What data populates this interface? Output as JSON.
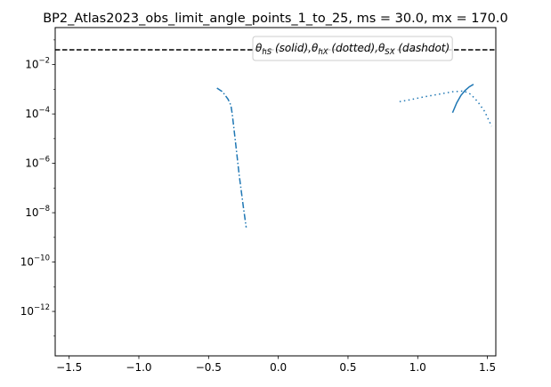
{
  "chart_data": {
    "type": "line",
    "title": "BP2_Atlas2023_obs_limit_angle_points_1_to_25, ms = 30.0, mx = 170.0",
    "xlabel": "",
    "ylabel": "",
    "xscale": "linear",
    "yscale": "log",
    "xlim": [
      -1.6,
      1.56
    ],
    "ylim_log10": [
      -13.8,
      -0.5
    ],
    "x_ticks": [
      -1.5,
      -1.0,
      -0.5,
      0.0,
      0.5,
      1.0,
      1.5
    ],
    "x_tick_labels": [
      "−1.5",
      "−1.0",
      "−0.5",
      "0.0",
      "0.5",
      "1.0",
      "1.5"
    ],
    "y_ticks_log10": [
      -2,
      -4,
      -6,
      -8,
      -10,
      -12
    ],
    "y_tick_labels": [
      {
        "base": "10",
        "exp": "−2"
      },
      {
        "base": "10",
        "exp": "−4"
      },
      {
        "base": "10",
        "exp": "−6"
      },
      {
        "base": "10",
        "exp": "−8"
      },
      {
        "base": "10",
        "exp": "−10"
      },
      {
        "base": "10",
        "exp": "−12"
      }
    ],
    "color": "#1f77b4",
    "reference_line": {
      "style": "dashed",
      "color": "#000000",
      "y_log10": -1.4
    },
    "legend": {
      "location": "upper right",
      "parts": [
        {
          "sym": "θ",
          "sub": "hS",
          "text": " (solid),"
        },
        {
          "sym": "θ",
          "sub": "hX",
          "text": " (dotted),"
        },
        {
          "sym": "θ",
          "sub": "SX",
          "text": " (dashdot)"
        }
      ]
    },
    "series": [
      {
        "name": "theta_hS",
        "style": "solid",
        "x": [
          1.25,
          1.28,
          1.31,
          1.34,
          1.37,
          1.4
        ],
        "y_log10": [
          -3.95,
          -3.55,
          -3.25,
          -3.05,
          -2.9,
          -2.8
        ]
      },
      {
        "name": "theta_hX",
        "style": "dotted",
        "x": [
          0.87,
          0.95,
          1.05,
          1.15,
          1.25,
          1.33,
          1.38,
          1.43,
          1.48,
          1.53
        ],
        "y_log10": [
          -3.5,
          -3.42,
          -3.3,
          -3.2,
          -3.1,
          -3.07,
          -3.2,
          -3.5,
          -3.9,
          -4.5
        ]
      },
      {
        "name": "theta_SX",
        "style": "dashdot",
        "x": [
          -0.44,
          -0.4,
          -0.36,
          -0.34,
          -0.33,
          -0.31,
          -0.28,
          -0.25,
          -0.23
        ],
        "y_log10": [
          -2.95,
          -3.1,
          -3.4,
          -3.65,
          -4.0,
          -5.0,
          -6.5,
          -7.8,
          -8.6
        ]
      }
    ]
  }
}
